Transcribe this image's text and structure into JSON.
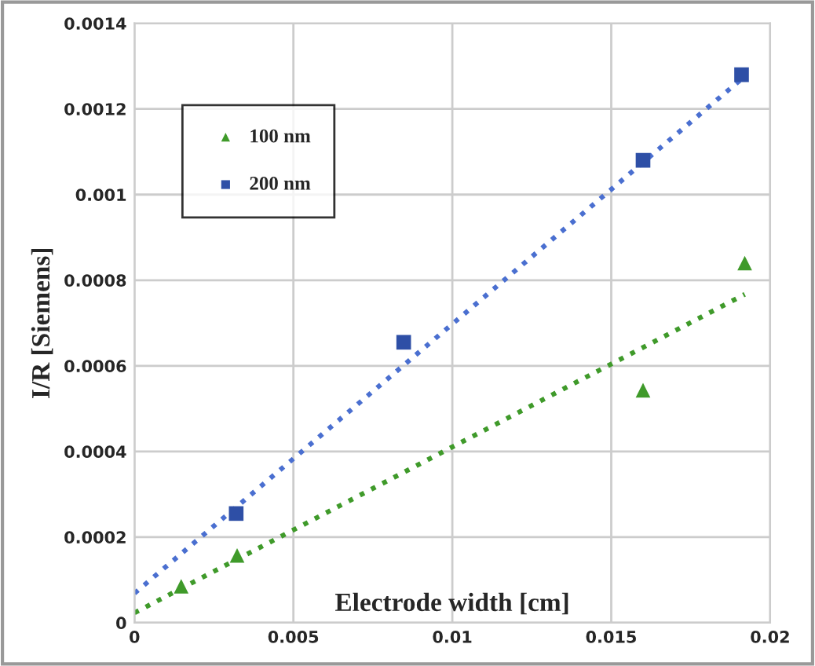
{
  "chart_data": {
    "type": "scatter",
    "xlabel": "Electrode width [cm]",
    "ylabel": "I/R [Siemens]",
    "xlim": [
      0,
      0.02
    ],
    "xticks": [
      0,
      0.005,
      0.01,
      0.015,
      0.02
    ],
    "ylim": [
      0,
      0.0014
    ],
    "yticks": [
      0,
      0.0002,
      0.0004,
      0.0006,
      0.0008,
      0.001,
      0.0012,
      0.0014
    ],
    "grid": true,
    "legend": "top left",
    "series": [
      {
        "name": "100 nm",
        "color": "#3f9a2a",
        "marker": "triangle",
        "x": [
          0.00147,
          0.00323,
          0.016,
          0.0192
        ],
        "values": [
          8.5e-05,
          0.000157,
          0.000543,
          0.00084
        ]
      },
      {
        "name": "200 nm",
        "color": "#2e4fa6",
        "marker": "square",
        "x": [
          0.0032,
          0.00847,
          0.016,
          0.0191
        ],
        "values": [
          0.000255,
          0.000655,
          0.00108,
          0.00128
        ]
      },
      {
        "type": "line",
        "line_style": "dotted",
        "color": "#3f9a2a",
        "x": [
          0,
          0.0192
        ],
        "values": [
          2.3e-05,
          0.000767
        ]
      },
      {
        "type": "line",
        "line_style": "dotted",
        "color": "#4a6fd0",
        "x": [
          0,
          0.0191
        ],
        "values": [
          6.87e-05,
          0.00127
        ]
      }
    ]
  }
}
